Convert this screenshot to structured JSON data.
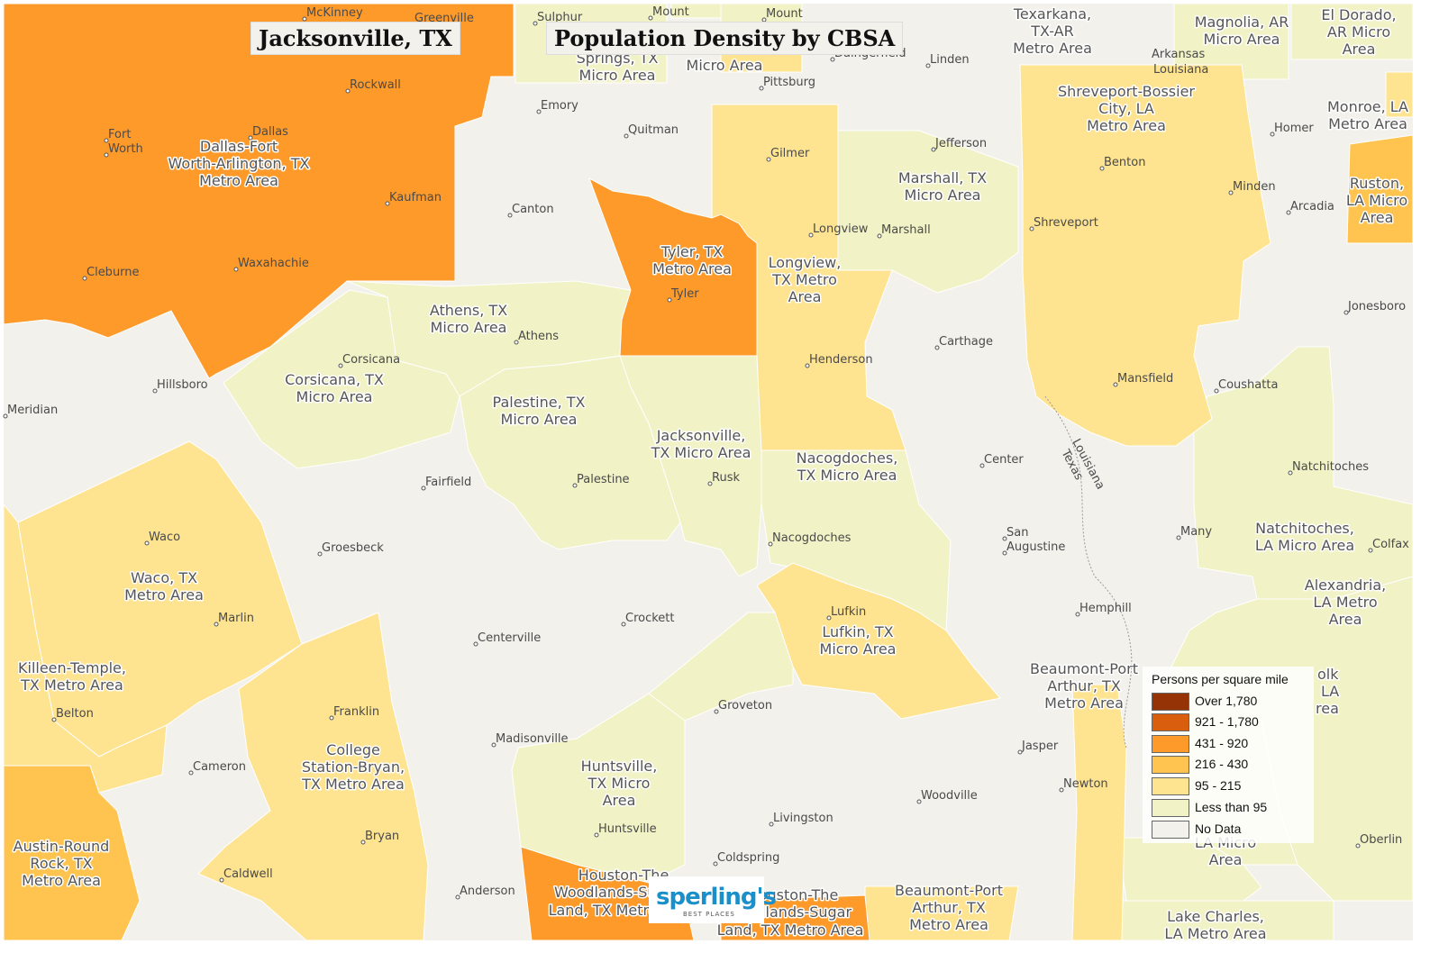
{
  "title_left": "Jacksonville, TX",
  "title_right": "Population Density by CBSA",
  "legend": {
    "title": "Persons per square mile",
    "items": [
      {
        "label": "Over 1,780",
        "color": "#953206"
      },
      {
        "label": "921 - 1,780",
        "color": "#d95f0e"
      },
      {
        "label": "431 - 920",
        "color": "#fe9a29"
      },
      {
        "label": "216 - 430",
        "color": "#fec44f"
      },
      {
        "label": "95 - 215",
        "color": "#fee391"
      },
      {
        "label": "Less than 95",
        "color": "#f1f2c5"
      },
      {
        "label": "No Data",
        "color": "#f2f1ec"
      }
    ]
  },
  "logo": {
    "name": "sperling's",
    "tagline": "BEST PLACES"
  },
  "cbsa_labels": {
    "dallas": [
      "Dallas-Fort",
      "Worth-Arlington, TX",
      "Metro Area"
    ],
    "sulphur": [
      "Springs, TX",
      "Micro Area"
    ],
    "mtpleasant": [
      "Micro Area"
    ],
    "texarkana": [
      "Texarkana,",
      "TX-AR",
      "Metro Area"
    ],
    "magnolia": [
      "Magnolia, AR",
      "Micro Area"
    ],
    "eldorado": [
      "El Dorado,",
      "AR Micro",
      "Area"
    ],
    "monroe": [
      "Monroe, LA",
      "Metro Area"
    ],
    "shreveport": [
      "Shreveport-Bossier",
      "City, LA",
      "Metro Area"
    ],
    "ruston": [
      "Ruston,",
      "LA Micro",
      "Area"
    ],
    "marshall": [
      "Marshall, TX",
      "Micro Area"
    ],
    "tyler": [
      "Tyler, TX",
      "Metro Area"
    ],
    "longview": [
      "Longview,",
      "TX Metro",
      "Area"
    ],
    "athens": [
      "Athens, TX",
      "Micro Area"
    ],
    "corsicana": [
      "Corsicana, TX",
      "Micro Area"
    ],
    "palestine": [
      "Palestine, TX",
      "Micro Area"
    ],
    "jacksonville": [
      "Jacksonville,",
      "TX Micro Area"
    ],
    "nacogdoches": [
      "Nacogdoches,",
      "TX Micro Area"
    ],
    "natchitoches": [
      "Natchitoches,",
      "LA Micro Area"
    ],
    "alexandria": [
      "Alexandria,",
      "LA Metro",
      "Area"
    ],
    "waco": [
      "Waco, TX",
      "Metro Area"
    ],
    "lufkin": [
      "Lufkin, TX",
      "Micro Area"
    ],
    "killeen": [
      "Killeen-Temple,",
      "TX Metro Area"
    ],
    "beaumont1": [
      "Beaumont-Port",
      "Arthur, TX",
      "Metro Area"
    ],
    "college": [
      "College",
      "Station-Bryan,",
      "TX Metro Area"
    ],
    "huntsville": [
      "Huntsville,",
      "TX Micro",
      "Area"
    ],
    "austin": [
      "Austin-Round",
      "Rock, TX",
      "Metro Area"
    ],
    "houston1": [
      "Houston-The",
      "Woodlands-Sugar",
      "Land, TX Metro Area"
    ],
    "houston2": [
      "Houston-The",
      "Woodlands-Sugar",
      "Land, TX Metro Area"
    ],
    "beaumont2": [
      "Beaumont-Port",
      "Arthur, TX",
      "Metro Area"
    ],
    "lakecharles": [
      "Lake Charles,",
      "LA Metro Area"
    ],
    "dequincy": [
      "LA Micro",
      "Area"
    ],
    "fortpolk": [
      "olk",
      "LA",
      "rea"
    ]
  },
  "cities": {
    "mckinney": "McKinney",
    "greenville": "Greenville",
    "sulphur": "Sulphur",
    "mount1": "Mount",
    "mount2": "Mount",
    "daingerfield": "Daingerfield",
    "linden": "Linden",
    "pittsburg": "Pittsburg",
    "arkansas": "Arkansas",
    "louisiana": "Louisiana",
    "rockwall": "Rockwall",
    "emory": "Emory",
    "quitman": "Quitman",
    "fortworth1": "Fort",
    "fortworth2": "Worth",
    "dallas": "Dallas",
    "gilmer": "Gilmer",
    "jefferson": "Jefferson",
    "homer": "Homer",
    "benton": "Benton",
    "kaufman": "Kaufman",
    "canton": "Canton",
    "minden": "Minden",
    "arcadia": "Arcadia",
    "shreveport": "Shreveport",
    "longview": "Longview",
    "marshall": "Marshall",
    "waxahachie": "Waxahachie",
    "cleburne": "Cleburne",
    "tyler": "Tyler",
    "jonesboro": "Jonesboro",
    "athens": "Athens",
    "carthage": "Carthage",
    "corsicana": "Corsicana",
    "henderson": "Henderson",
    "hillsboro": "Hillsboro",
    "mansfield": "Mansfield",
    "coushatta": "Coushatta",
    "meridian": "Meridian",
    "louisiana_border": "Louisiana",
    "texas_border": "Texas",
    "center": "Center",
    "natchitoches": "Natchitoches",
    "rusk": "Rusk",
    "fairfield": "Fairfield",
    "palestine": "Palestine",
    "sanaugustine1": "San",
    "sanaugustine2": "Augustine",
    "many": "Many",
    "nacogdoches": "Nacogdoches",
    "colfax": "Colfax",
    "waco": "Waco",
    "groesbeck": "Groesbeck",
    "hemphill": "Hemphill",
    "lufkin": "Lufkin",
    "marlin": "Marlin",
    "crockett": "Crockett",
    "centerville": "Centerville",
    "groveton": "Groveton",
    "belton": "Belton",
    "franklin": "Franklin",
    "jasper": "Jasper",
    "madisonville": "Madisonville",
    "cameron": "Cameron",
    "newton": "Newton",
    "woodville": "Woodville",
    "livingston": "Livingston",
    "huntsville": "Huntsville",
    "bryan": "Bryan",
    "oberlin": "Oberlin",
    "coldspring": "Coldspring",
    "caldwell": "Caldwell",
    "anderson": "Anderson"
  }
}
